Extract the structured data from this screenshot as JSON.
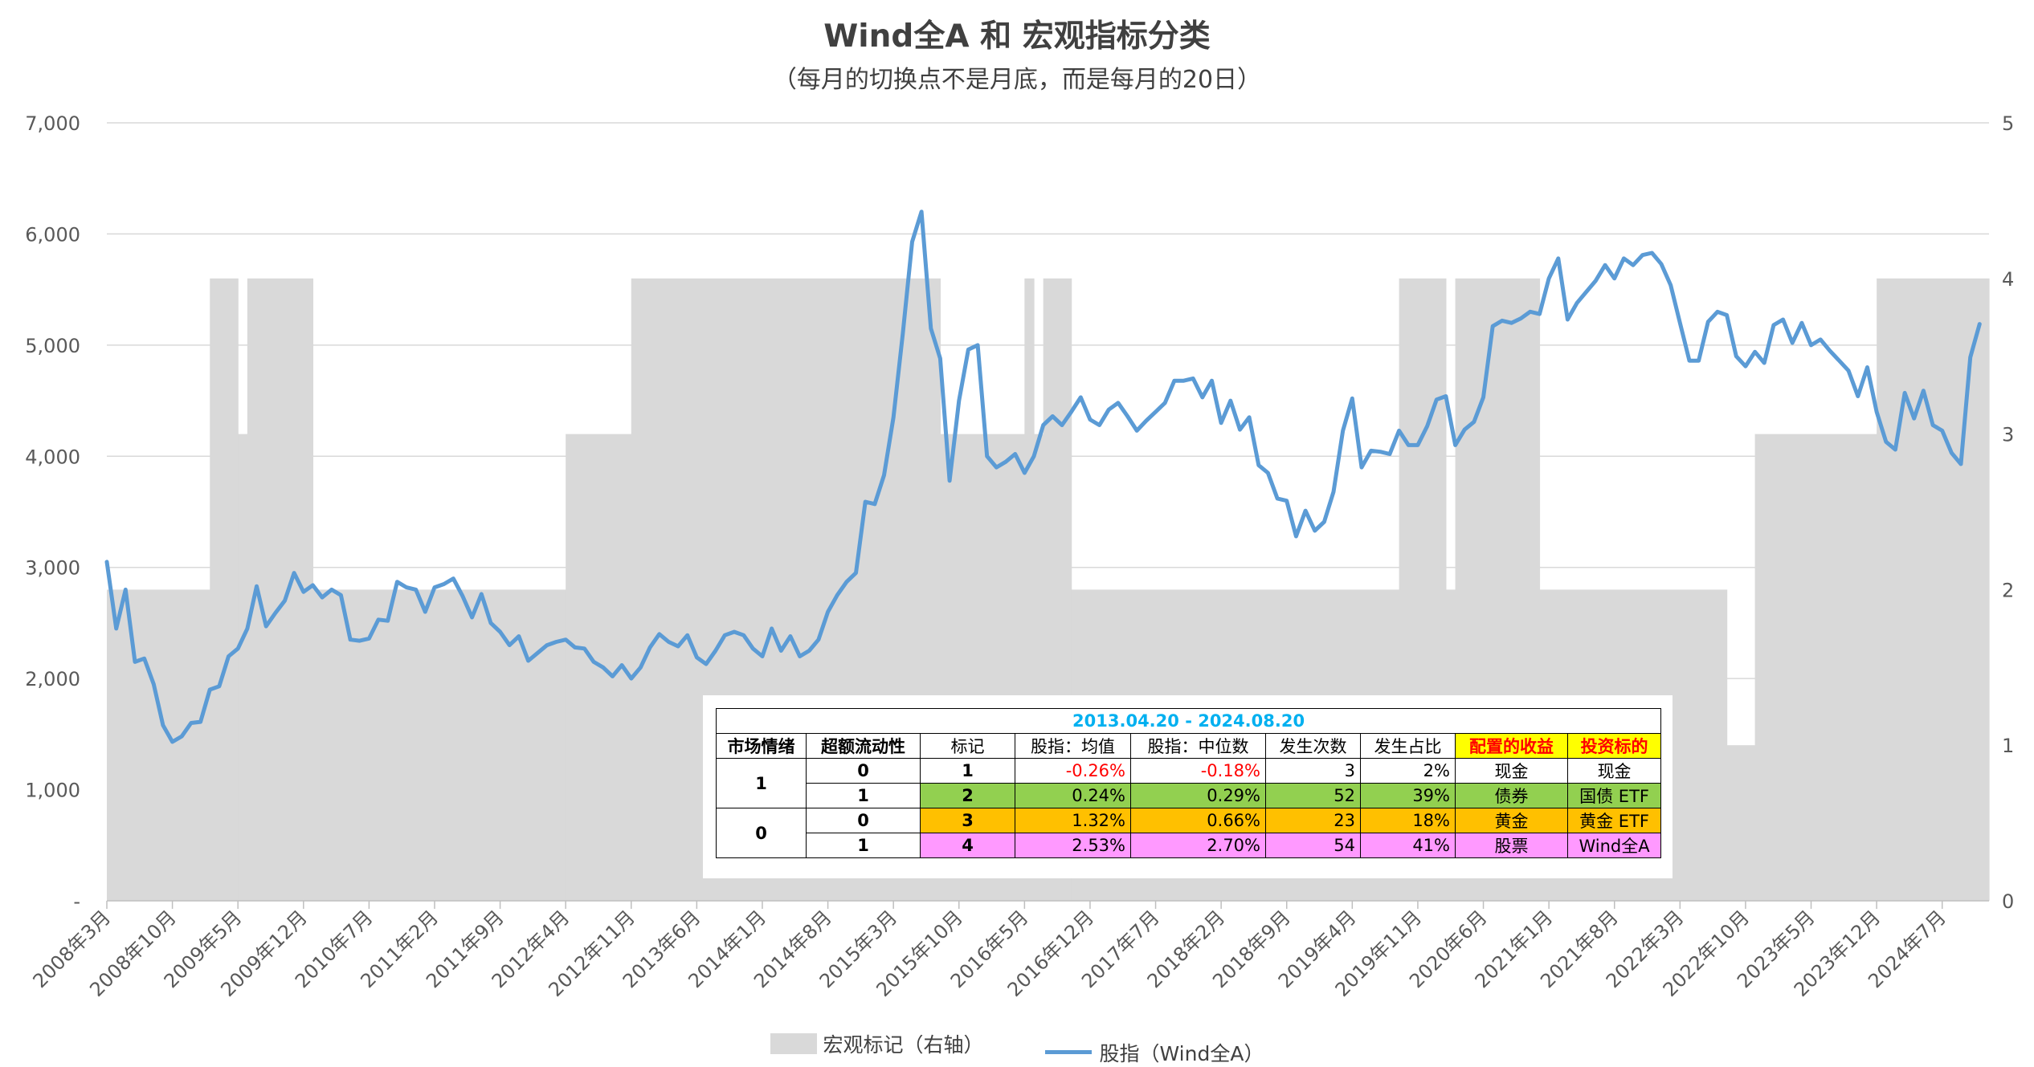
{
  "title": "Wind全A 和 宏观指标分类",
  "subtitle": "（每月的切换点不是月底，而是每月的20日）",
  "legend": {
    "area_label": "宏观标记（右轴）",
    "line_label": "股指（Wind全A）"
  },
  "colors": {
    "area": "#d9d9d9",
    "line": "#5b9bd5",
    "grid": "#d9d9d9",
    "axis_text": "#595959"
  },
  "chart_data": {
    "type": "line",
    "title": "Wind全A 和 宏观指标分类",
    "subtitle": "（每月的切换点不是月底，而是每月的20日）",
    "left_axis": {
      "ylim": [
        0,
        7000
      ],
      "ticks": [
        "-",
        "1,000",
        "2,000",
        "3,000",
        "4,000",
        "5,000",
        "6,000",
        "7,000"
      ]
    },
    "right_axis": {
      "ylim": [
        0,
        5
      ],
      "ticks": [
        "0",
        "1",
        "2",
        "3",
        "4",
        "5"
      ]
    },
    "grid": true,
    "legend_position": "bottom",
    "x_tick_labels": [
      "2008年3月",
      "2008年10月",
      "2009年5月",
      "2009年12月",
      "2010年7月",
      "2011年2月",
      "2011年9月",
      "2012年4月",
      "2012年11月",
      "2013年6月",
      "2014年1月",
      "2014年8月",
      "2015年3月",
      "2015年10月",
      "2016年5月",
      "2016年12月",
      "2017年7月",
      "2018年2月",
      "2018年9月",
      "2019年4月",
      "2019年11月",
      "2020年6月",
      "2021年1月",
      "2021年8月",
      "2022年3月",
      "2022年10月",
      "2023年5月",
      "2023年12月",
      "2024年7月"
    ],
    "x_start": "2008-03",
    "x_end": "2024-12",
    "series": [
      {
        "name": "宏观标记（右轴）",
        "type": "area-step",
        "axis": "right",
        "segments": [
          {
            "from": "2008-03",
            "to": "2009-02",
            "value": 2
          },
          {
            "from": "2009-02",
            "to": "2009-05",
            "value": 4
          },
          {
            "from": "2009-05",
            "to": "2009-06",
            "value": 3
          },
          {
            "from": "2009-06",
            "to": "2010-01",
            "value": 4
          },
          {
            "from": "2010-01",
            "to": "2012-04",
            "value": 2
          },
          {
            "from": "2012-04",
            "to": "2012-11",
            "value": 3
          },
          {
            "from": "2012-11",
            "to": "2015-08",
            "value": 4
          },
          {
            "from": "2015-08",
            "to": "2016-05",
            "value": 3
          },
          {
            "from": "2016-05",
            "to": "2016-06",
            "value": 4
          },
          {
            "from": "2016-06",
            "to": "2016-07",
            "value": 3
          },
          {
            "from": "2016-07",
            "to": "2016-10",
            "value": 4
          },
          {
            "from": "2016-10",
            "to": "2019-09",
            "value": 2
          },
          {
            "from": "2019-09",
            "to": "2020-02",
            "value": 4
          },
          {
            "from": "2020-02",
            "to": "2020-03",
            "value": 2
          },
          {
            "from": "2020-03",
            "to": "2020-12",
            "value": 4
          },
          {
            "from": "2020-12",
            "to": "2022-08",
            "value": 2
          },
          {
            "from": "2022-08",
            "to": "2022-11",
            "value": 1
          },
          {
            "from": "2022-11",
            "to": "2023-12",
            "value": 3
          },
          {
            "from": "2023-12",
            "to": "2024-12",
            "value": 4
          }
        ]
      },
      {
        "name": "股指（Wind全A）",
        "type": "line",
        "axis": "left",
        "points": [
          [
            "2008-03",
            3050
          ],
          [
            "2008-04",
            2450
          ],
          [
            "2008-05",
            2800
          ],
          [
            "2008-06",
            2150
          ],
          [
            "2008-07",
            2180
          ],
          [
            "2008-08",
            1950
          ],
          [
            "2008-09",
            1580
          ],
          [
            "2008-10",
            1430
          ],
          [
            "2008-11",
            1480
          ],
          [
            "2008-12",
            1600
          ],
          [
            "2009-01",
            1610
          ],
          [
            "2009-02",
            1900
          ],
          [
            "2009-03",
            1930
          ],
          [
            "2009-04",
            2200
          ],
          [
            "2009-05",
            2270
          ],
          [
            "2009-06",
            2450
          ],
          [
            "2009-07",
            2830
          ],
          [
            "2009-08",
            2470
          ],
          [
            "2009-09",
            2590
          ],
          [
            "2009-10",
            2700
          ],
          [
            "2009-11",
            2950
          ],
          [
            "2009-12",
            2780
          ],
          [
            "2010-01",
            2840
          ],
          [
            "2010-02",
            2730
          ],
          [
            "2010-03",
            2800
          ],
          [
            "2010-04",
            2750
          ],
          [
            "2010-05",
            2350
          ],
          [
            "2010-06",
            2340
          ],
          [
            "2010-07",
            2360
          ],
          [
            "2010-08",
            2530
          ],
          [
            "2010-09",
            2520
          ],
          [
            "2010-10",
            2870
          ],
          [
            "2010-11",
            2820
          ],
          [
            "2010-12",
            2800
          ],
          [
            "2011-01",
            2600
          ],
          [
            "2011-02",
            2820
          ],
          [
            "2011-03",
            2850
          ],
          [
            "2011-04",
            2900
          ],
          [
            "2011-05",
            2740
          ],
          [
            "2011-06",
            2550
          ],
          [
            "2011-07",
            2760
          ],
          [
            "2011-08",
            2500
          ],
          [
            "2011-09",
            2420
          ],
          [
            "2011-10",
            2300
          ],
          [
            "2011-11",
            2380
          ],
          [
            "2011-12",
            2160
          ],
          [
            "2012-01",
            2230
          ],
          [
            "2012-02",
            2300
          ],
          [
            "2012-03",
            2330
          ],
          [
            "2012-04",
            2350
          ],
          [
            "2012-05",
            2280
          ],
          [
            "2012-06",
            2270
          ],
          [
            "2012-07",
            2150
          ],
          [
            "2012-08",
            2100
          ],
          [
            "2012-09",
            2020
          ],
          [
            "2012-10",
            2120
          ],
          [
            "2012-11",
            2000
          ],
          [
            "2012-12",
            2100
          ],
          [
            "2013-01",
            2280
          ],
          [
            "2013-02",
            2400
          ],
          [
            "2013-03",
            2330
          ],
          [
            "2013-04",
            2290
          ],
          [
            "2013-05",
            2390
          ],
          [
            "2013-06",
            2190
          ],
          [
            "2013-07",
            2130
          ],
          [
            "2013-08",
            2250
          ],
          [
            "2013-09",
            2390
          ],
          [
            "2013-10",
            2420
          ],
          [
            "2013-11",
            2390
          ],
          [
            "2013-12",
            2270
          ],
          [
            "2014-01",
            2200
          ],
          [
            "2014-02",
            2450
          ],
          [
            "2014-03",
            2250
          ],
          [
            "2014-04",
            2380
          ],
          [
            "2014-05",
            2200
          ],
          [
            "2014-06",
            2250
          ],
          [
            "2014-07",
            2350
          ],
          [
            "2014-08",
            2600
          ],
          [
            "2014-09",
            2750
          ],
          [
            "2014-10",
            2870
          ],
          [
            "2014-11",
            2950
          ],
          [
            "2014-12",
            3590
          ],
          [
            "2015-01",
            3570
          ],
          [
            "2015-02",
            3830
          ],
          [
            "2015-03",
            4350
          ],
          [
            "2015-04",
            5100
          ],
          [
            "2015-05",
            5930
          ],
          [
            "2015-06",
            6200
          ],
          [
            "2015-07",
            5150
          ],
          [
            "2015-08",
            4880
          ],
          [
            "2015-09",
            3780
          ],
          [
            "2015-10",
            4500
          ],
          [
            "2015-11",
            4960
          ],
          [
            "2015-12",
            5000
          ],
          [
            "2016-01",
            4000
          ],
          [
            "2016-02",
            3900
          ],
          [
            "2016-03",
            3950
          ],
          [
            "2016-04",
            4020
          ],
          [
            "2016-05",
            3850
          ],
          [
            "2016-06",
            4000
          ],
          [
            "2016-07",
            4280
          ],
          [
            "2016-08",
            4360
          ],
          [
            "2016-09",
            4280
          ],
          [
            "2016-10",
            4400
          ],
          [
            "2016-11",
            4530
          ],
          [
            "2016-12",
            4330
          ],
          [
            "2017-01",
            4280
          ],
          [
            "2017-02",
            4420
          ],
          [
            "2017-03",
            4480
          ],
          [
            "2017-04",
            4360
          ],
          [
            "2017-05",
            4230
          ],
          [
            "2017-06",
            4320
          ],
          [
            "2017-07",
            4400
          ],
          [
            "2017-08",
            4480
          ],
          [
            "2017-09",
            4680
          ],
          [
            "2017-10",
            4680
          ],
          [
            "2017-11",
            4700
          ],
          [
            "2017-12",
            4530
          ],
          [
            "2018-01",
            4680
          ],
          [
            "2018-02",
            4300
          ],
          [
            "2018-03",
            4500
          ],
          [
            "2018-04",
            4240
          ],
          [
            "2018-05",
            4350
          ],
          [
            "2018-06",
            3920
          ],
          [
            "2018-07",
            3850
          ],
          [
            "2018-08",
            3620
          ],
          [
            "2018-09",
            3600
          ],
          [
            "2018-10",
            3280
          ],
          [
            "2018-11",
            3510
          ],
          [
            "2018-12",
            3330
          ],
          [
            "2019-01",
            3410
          ],
          [
            "2019-02",
            3680
          ],
          [
            "2019-03",
            4230
          ],
          [
            "2019-04",
            4520
          ],
          [
            "2019-05",
            3900
          ],
          [
            "2019-06",
            4050
          ],
          [
            "2019-07",
            4040
          ],
          [
            "2019-08",
            4020
          ],
          [
            "2019-09",
            4230
          ],
          [
            "2019-10",
            4100
          ],
          [
            "2019-11",
            4100
          ],
          [
            "2019-12",
            4270
          ],
          [
            "2020-01",
            4510
          ],
          [
            "2020-02",
            4540
          ],
          [
            "2020-03",
            4100
          ],
          [
            "2020-04",
            4240
          ],
          [
            "2020-05",
            4310
          ],
          [
            "2020-06",
            4530
          ],
          [
            "2020-07",
            5170
          ],
          [
            "2020-08",
            5220
          ],
          [
            "2020-09",
            5200
          ],
          [
            "2020-10",
            5240
          ],
          [
            "2020-11",
            5300
          ],
          [
            "2020-12",
            5280
          ],
          [
            "2021-01",
            5600
          ],
          [
            "2021-02",
            5780
          ],
          [
            "2021-03",
            5230
          ],
          [
            "2021-04",
            5380
          ],
          [
            "2021-05",
            5480
          ],
          [
            "2021-06",
            5580
          ],
          [
            "2021-07",
            5720
          ],
          [
            "2021-08",
            5600
          ],
          [
            "2021-09",
            5780
          ],
          [
            "2021-10",
            5720
          ],
          [
            "2021-11",
            5810
          ],
          [
            "2021-12",
            5830
          ],
          [
            "2022-01",
            5730
          ],
          [
            "2022-02",
            5540
          ],
          [
            "2022-03",
            5200
          ],
          [
            "2022-04",
            4860
          ],
          [
            "2022-05",
            4860
          ],
          [
            "2022-06",
            5210
          ],
          [
            "2022-07",
            5300
          ],
          [
            "2022-08",
            5270
          ],
          [
            "2022-09",
            4900
          ],
          [
            "2022-10",
            4810
          ],
          [
            "2022-11",
            4940
          ],
          [
            "2022-12",
            4840
          ],
          [
            "2023-01",
            5180
          ],
          [
            "2023-02",
            5230
          ],
          [
            "2023-03",
            5020
          ],
          [
            "2023-04",
            5200
          ],
          [
            "2023-05",
            5000
          ],
          [
            "2023-06",
            5050
          ],
          [
            "2023-07",
            4950
          ],
          [
            "2023-08",
            4860
          ],
          [
            "2023-09",
            4770
          ],
          [
            "2023-10",
            4540
          ],
          [
            "2023-11",
            4800
          ],
          [
            "2023-12",
            4400
          ],
          [
            "2024-01",
            4130
          ],
          [
            "2024-02",
            4060
          ],
          [
            "2024-03",
            4570
          ],
          [
            "2024-04",
            4340
          ],
          [
            "2024-05",
            4590
          ],
          [
            "2024-06",
            4280
          ],
          [
            "2024-07",
            4230
          ],
          [
            "2024-08",
            4030
          ],
          [
            "2024-09",
            3930
          ],
          [
            "2024-10",
            4890
          ],
          [
            "2024-11",
            5190
          ]
        ]
      }
    ]
  },
  "table": {
    "period": "2013.04.20 - 2024.08.20",
    "headers": [
      "市场情绪",
      "超额流动性",
      "标记",
      "股指：均值",
      "股指：中位数",
      "发生次数",
      "发生占比",
      "配置的收益",
      "投资标的"
    ],
    "rows": [
      {
        "sentiment": "1",
        "liquidity": "0",
        "mark": "1",
        "mean": "-0.26%",
        "median": "-0.18%",
        "count": "3",
        "ratio": "2%",
        "asset": "现金",
        "target": "现金"
      },
      {
        "sentiment": "",
        "liquidity": "1",
        "mark": "2",
        "mean": "0.24%",
        "median": "0.29%",
        "count": "52",
        "ratio": "39%",
        "asset": "债券",
        "target": "国债 ETF"
      },
      {
        "sentiment": "0",
        "liquidity": "0",
        "mark": "3",
        "mean": "1.32%",
        "median": "0.66%",
        "count": "23",
        "ratio": "18%",
        "asset": "黄金",
        "target": "黄金 ETF"
      },
      {
        "sentiment": "",
        "liquidity": "1",
        "mark": "4",
        "mean": "2.53%",
        "median": "2.70%",
        "count": "54",
        "ratio": "41%",
        "asset": "股票",
        "target": "Wind全A"
      }
    ]
  }
}
